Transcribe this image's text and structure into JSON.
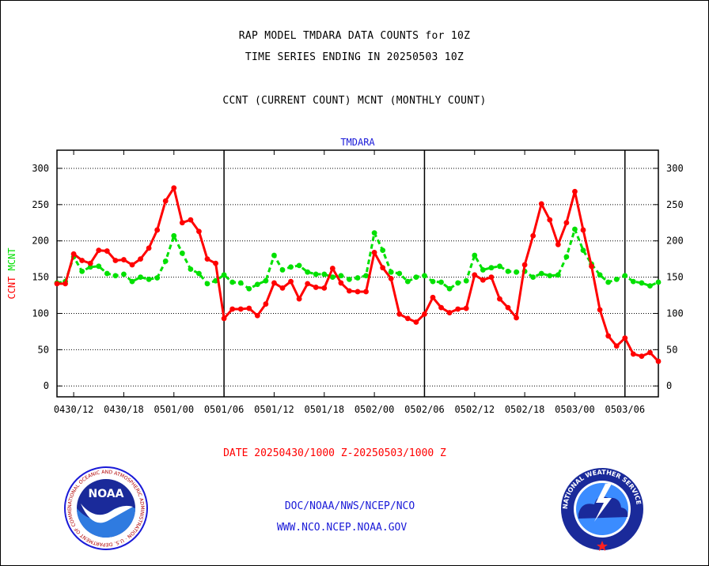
{
  "titles": {
    "line1": "RAP MODEL TMDARA DATA COUNTS for 10Z",
    "line2": "TIME SERIES ENDING IN 20250503 10Z",
    "line3": "CCNT (CURRENT COUNT) MCNT (MONTHLY COUNT)"
  },
  "date_range": "DATE 20250430/1000 Z-20250503/1000 Z",
  "footer": {
    "org": "DOC/NOAA/NWS/NCEP/NCO",
    "url": "WWW.NCO.NCEP.NOAA.GOV"
  },
  "logos": {
    "noaa_text": "NOAA",
    "noaa_ring": "NATIONAL OCEANIC AND ATMOSPHERIC ADMINISTRATION · U.S. DEPARTMENT OF COMMERCE ·",
    "nws_ring": "NATIONAL WEATHER SERVICE"
  },
  "colors": {
    "ccnt": "#ff0000",
    "mcnt": "#00e000",
    "panel_title": "#1a1ad8",
    "grid": "#000000"
  },
  "chart_data": {
    "type": "line",
    "title": "TMDARA",
    "ylabel_parts": [
      {
        "text": "CCNT",
        "color": "#ff0000"
      },
      {
        "text": "MCNT",
        "color": "#00e000"
      }
    ],
    "ylim": [
      -15,
      325
    ],
    "yticks": [
      0,
      50,
      100,
      150,
      200,
      250,
      300
    ],
    "xlim": [
      0,
      72
    ],
    "xticks": [
      {
        "x": 2,
        "label": "0430/12"
      },
      {
        "x": 8,
        "label": "0430/18"
      },
      {
        "x": 14,
        "label": "0501/00"
      },
      {
        "x": 20,
        "label": "0501/06"
      },
      {
        "x": 26,
        "label": "0501/12"
      },
      {
        "x": 32,
        "label": "0501/18"
      },
      {
        "x": 38,
        "label": "0502/00"
      },
      {
        "x": 44,
        "label": "0502/06"
      },
      {
        "x": 50,
        "label": "0502/12"
      },
      {
        "x": 56,
        "label": "0502/18"
      },
      {
        "x": 62,
        "label": "0503/00"
      },
      {
        "x": 68,
        "label": "0503/06"
      }
    ],
    "day_dividers": [
      20,
      44,
      68
    ],
    "grid": "horizontal dotted",
    "series": [
      {
        "name": "CCNT",
        "color": "#ff0000",
        "style": "solid",
        "values": [
          141,
          141,
          182,
          173,
          169,
          187,
          186,
          173,
          174,
          167,
          175,
          190,
          215,
          255,
          273,
          225,
          229,
          213,
          175,
          169,
          93,
          106,
          106,
          107,
          97,
          113,
          142,
          135,
          144,
          120,
          141,
          136,
          135,
          162,
          142,
          131,
          130,
          130,
          184,
          163,
          148,
          99,
          93,
          88,
          99,
          122,
          108,
          101,
          106,
          107,
          153,
          146,
          150,
          120,
          108,
          94,
          167,
          207,
          251,
          229,
          195,
          225,
          268,
          215,
          165,
          105,
          69,
          55,
          66,
          44,
          41,
          46,
          34
        ]
      },
      {
        "name": "MCNT",
        "color": "#00e000",
        "style": "dashed",
        "values": [
          142,
          144,
          178,
          158,
          164,
          165,
          155,
          152,
          154,
          144,
          150,
          147,
          149,
          172,
          207,
          183,
          161,
          155,
          141,
          145,
          153,
          143,
          142,
          134,
          140,
          145,
          180,
          160,
          164,
          166,
          157,
          154,
          154,
          150,
          152,
          147,
          149,
          152,
          211,
          187,
          157,
          155,
          144,
          150,
          152,
          144,
          143,
          134,
          142,
          145,
          180,
          160,
          163,
          165,
          158,
          157,
          158,
          150,
          155,
          152,
          153,
          178,
          216,
          187,
          168,
          153,
          143,
          147,
          152,
          144,
          142,
          138,
          143
        ]
      }
    ]
  }
}
